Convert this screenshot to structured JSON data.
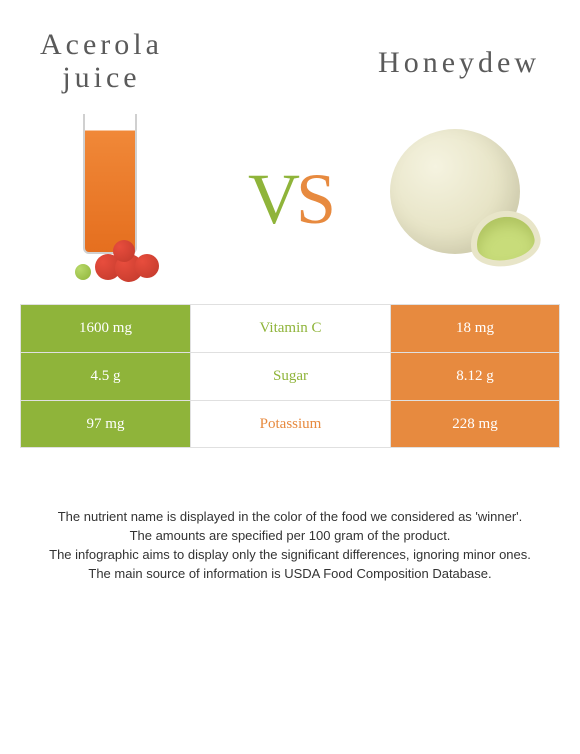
{
  "header": {
    "left_title_line1": "Acerola",
    "left_title_line2": "juice",
    "right_title": "Honeydew"
  },
  "vs": {
    "v": "V",
    "s": "S"
  },
  "colors": {
    "green": "#8fb43a",
    "orange": "#e78a3f",
    "row_border": "#e0e0e0",
    "text_dark": "#333333",
    "title_gray": "#5a5a5a"
  },
  "table": {
    "rows": [
      {
        "left_value": "1600 mg",
        "left_bg": "green",
        "nutrient": "Vitamin C",
        "nutrient_color": "green",
        "right_value": "18 mg",
        "right_bg": "orange"
      },
      {
        "left_value": "4.5 g",
        "left_bg": "green",
        "nutrient": "Sugar",
        "nutrient_color": "green",
        "right_value": "8.12 g",
        "right_bg": "orange"
      },
      {
        "left_value": "97 mg",
        "left_bg": "green",
        "nutrient": "Potassium",
        "nutrient_color": "orange",
        "right_value": "228 mg",
        "right_bg": "orange"
      }
    ]
  },
  "footer": {
    "line1": "The nutrient name is displayed in the color of the food we considered as 'winner'.",
    "line2": "The amounts are specified per 100 gram of the product.",
    "line3": "The infographic aims to display only the significant differences, ignoring minor ones.",
    "line4": "The main source of information is USDA Food Composition Database."
  }
}
